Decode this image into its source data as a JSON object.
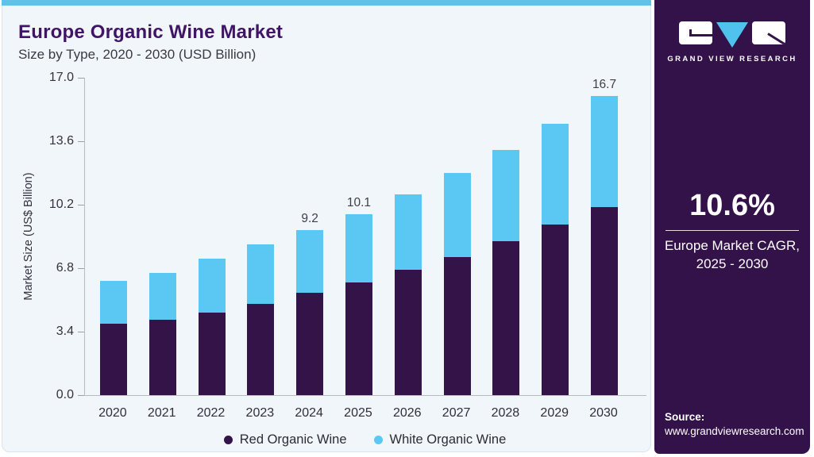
{
  "header": {
    "title": "Europe Organic Wine Market",
    "subtitle": "Size by Type, 2020 - 2030 (USD Billion)"
  },
  "chart_data": {
    "type": "bar",
    "stacked": true,
    "title": "Europe Organic Wine Market",
    "subtitle": "Size by Type, 2020 - 2030 (USD Billion)",
    "categories": [
      2020,
      2021,
      2022,
      2023,
      2024,
      2025,
      2026,
      2027,
      2028,
      2029,
      2030
    ],
    "series": [
      {
        "name": "Red Organic Wine",
        "color": "#331348",
        "values": [
          4.0,
          4.2,
          4.6,
          5.1,
          5.7,
          6.3,
          7.0,
          7.7,
          8.6,
          9.5,
          10.5
        ]
      },
      {
        "name": "White Organic Wine",
        "color": "#5bc8f4",
        "values": [
          2.4,
          2.6,
          3.0,
          3.3,
          3.5,
          3.8,
          4.2,
          4.7,
          5.1,
          5.6,
          6.2
        ]
      }
    ],
    "totals": [
      6.4,
      6.8,
      7.6,
      8.4,
      9.2,
      10.1,
      11.2,
      12.4,
      13.7,
      15.1,
      16.7
    ],
    "totals_labeled": {
      "2024": "9.2",
      "2025": "10.1",
      "2030": "16.7"
    },
    "ylabel": "Market Size (US$ Billion)",
    "xlabel": "",
    "yticks": [
      0.0,
      3.4,
      6.8,
      10.2,
      13.6,
      17.0
    ],
    "ylim": [
      0,
      17
    ],
    "grid": false,
    "legend_position": "bottom"
  },
  "sidebar": {
    "logo_text": "GRAND VIEW RESEARCH",
    "cagr_value": "10.6%",
    "cagr_caption_line1": "Europe Market CAGR,",
    "cagr_caption_line2": "2025 - 2030",
    "source_label": "Source:",
    "source_url": "www.grandviewresearch.com"
  },
  "colors": {
    "accent_strip": "#5fc3e9",
    "brand_purple": "#401566",
    "sidebar_bg": "#331149",
    "red_wine_bar": "#331348",
    "white_wine_bar": "#5bc8f4"
  }
}
